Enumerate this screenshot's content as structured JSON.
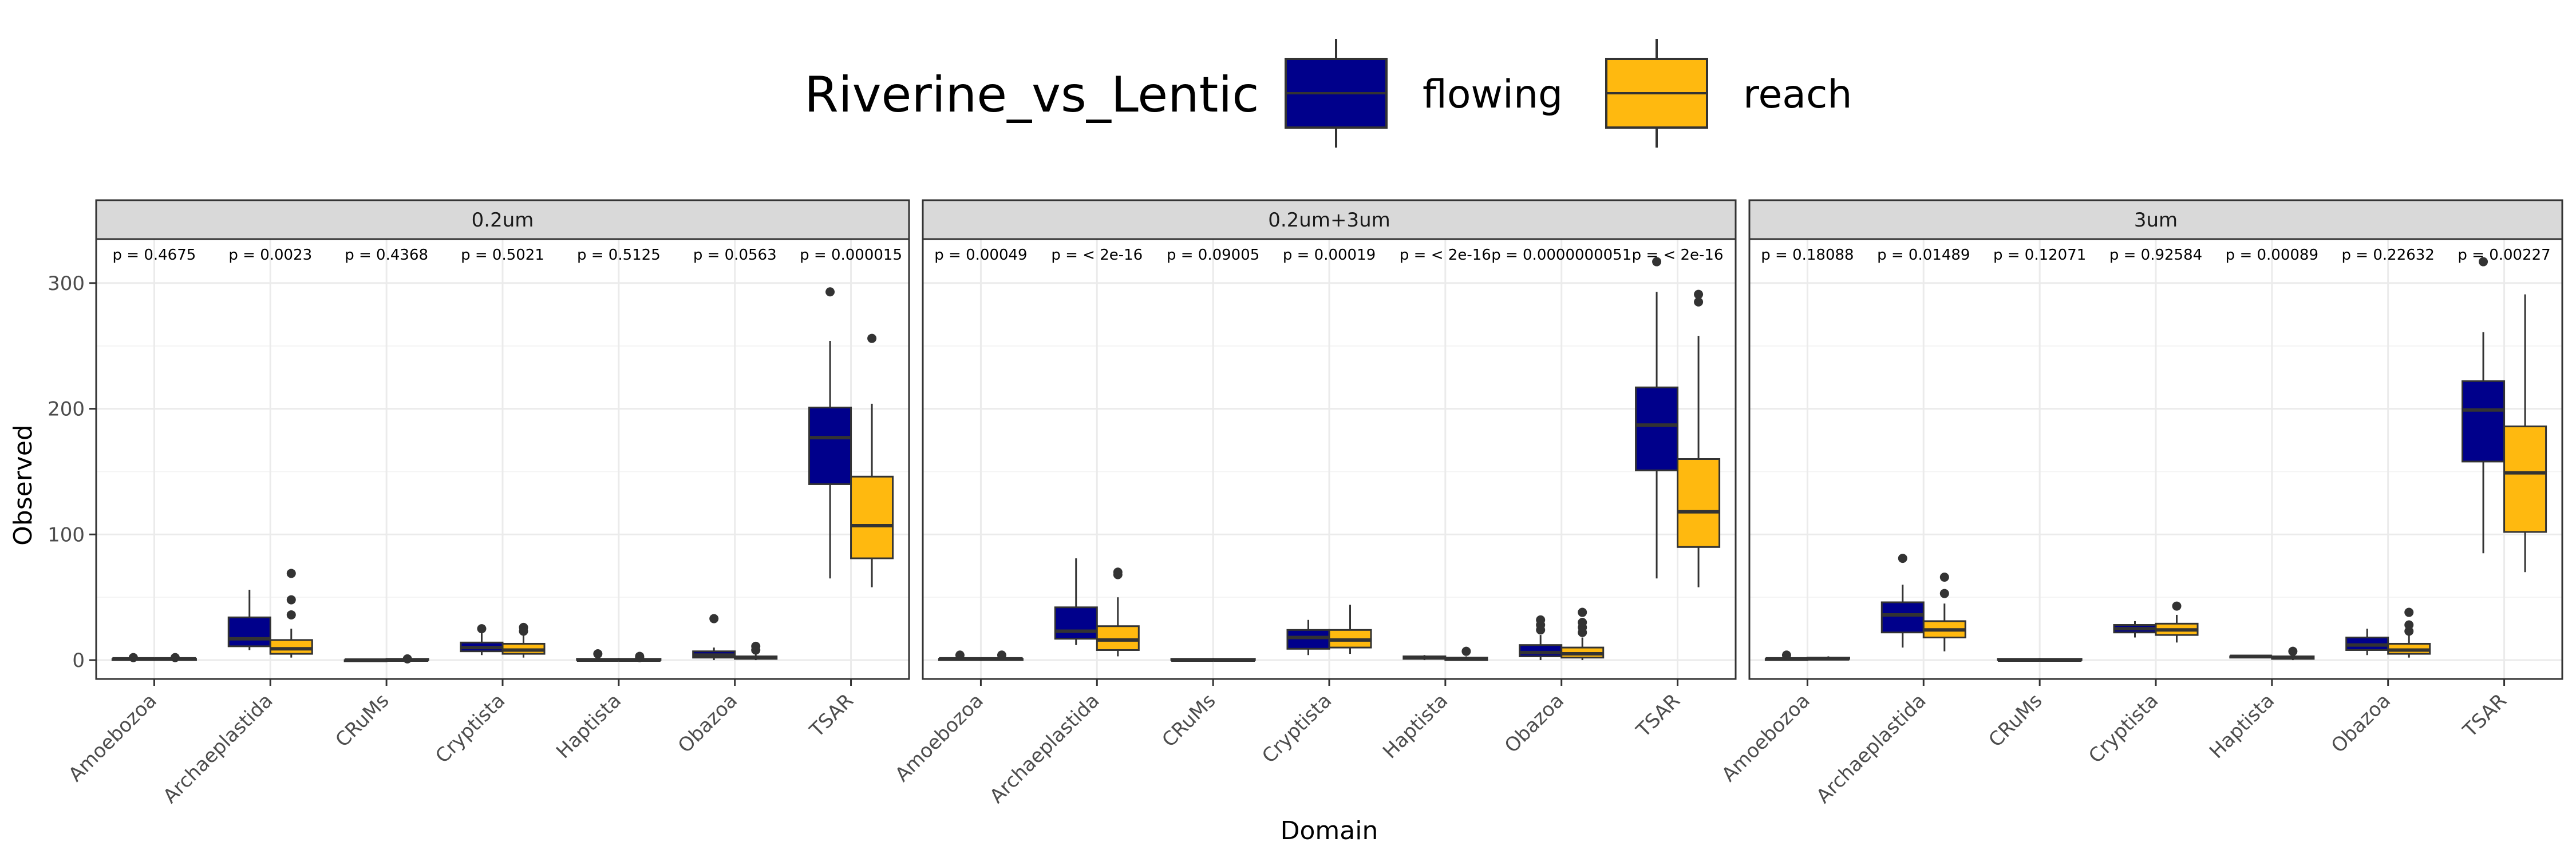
{
  "chart_data": {
    "type": "boxplot",
    "xlabel": "Domain",
    "ylabel": "Observed",
    "ylim": [
      -15,
      335
    ],
    "yticks": [
      0,
      100,
      200,
      300
    ],
    "legend": {
      "title": "Riverine_vs_Lentic",
      "placement": "top",
      "entries": [
        {
          "label": "flowing",
          "color": "#00008B"
        },
        {
          "label": "reach",
          "color": "#FFB90F"
        }
      ]
    },
    "categories": [
      "Amoebozoa",
      "Archaeplastida",
      "CRuMs",
      "Cryptista",
      "Haptista",
      "Obazoa",
      "TSAR"
    ],
    "grid": true,
    "panels": [
      {
        "strip": "0.2um",
        "pvalues": [
          "p = 0.4675",
          "p = 0.0023",
          "p = 0.4368",
          "p = 0.5021",
          "p = 0.5125",
          "p = 0.0563",
          "p = 0.000015"
        ],
        "boxes": {
          "flowing": [
            {
              "min": 0,
              "q1": 0,
              "median": 1,
              "q3": 1,
              "max": 2,
              "outliers": [
                2
              ]
            },
            {
              "min": 8,
              "q1": 11,
              "median": 17,
              "q3": 34,
              "max": 56,
              "outliers": []
            },
            {
              "min": 0,
              "q1": 0,
              "median": 0,
              "q3": 0,
              "max": 0,
              "outliers": []
            },
            {
              "min": 4,
              "q1": 7,
              "median": 10,
              "q3": 14,
              "max": 22,
              "outliers": [
                25
              ]
            },
            {
              "min": 0,
              "q1": 0,
              "median": 0,
              "q3": 1,
              "max": 2,
              "outliers": [
                5
              ]
            },
            {
              "min": 0,
              "q1": 2,
              "median": 4,
              "q3": 7,
              "max": 10,
              "outliers": [
                33
              ]
            },
            {
              "min": 65,
              "q1": 140,
              "median": 177,
              "q3": 201,
              "max": 254,
              "outliers": [
                293
              ]
            }
          ],
          "reach": [
            {
              "min": 0,
              "q1": 0,
              "median": 1,
              "q3": 1,
              "max": 2,
              "outliers": [
                2
              ]
            },
            {
              "min": 2,
              "q1": 5,
              "median": 9,
              "q3": 16,
              "max": 25,
              "outliers": [
                36,
                48,
                69
              ]
            },
            {
              "min": 0,
              "q1": 0,
              "median": 0,
              "q3": 1,
              "max": 1,
              "outliers": [
                1
              ]
            },
            {
              "min": 2,
              "q1": 5,
              "median": 8,
              "q3": 13,
              "max": 20,
              "outliers": [
                23,
                26
              ]
            },
            {
              "min": 0,
              "q1": 0,
              "median": 0,
              "q3": 1,
              "max": 1,
              "outliers": [
                2,
                3
              ]
            },
            {
              "min": 0,
              "q1": 1,
              "median": 2,
              "q3": 3,
              "max": 5,
              "outliers": [
                8,
                11
              ]
            },
            {
              "min": 58,
              "q1": 81,
              "median": 107,
              "q3": 146,
              "max": 204,
              "outliers": [
                256
              ]
            }
          ]
        }
      },
      {
        "strip": "0.2um+3um",
        "pvalues": [
          "p = 0.00049",
          "p = < 2e-16",
          "p = 0.09005",
          "p = 0.00019",
          "p = < 2e-16",
          "p = 0.0000000051",
          "p = < 2e-16"
        ],
        "boxes": {
          "flowing": [
            {
              "min": 0,
              "q1": 0,
              "median": 1,
              "q3": 1,
              "max": 2,
              "outliers": [
                4
              ]
            },
            {
              "min": 12,
              "q1": 17,
              "median": 23,
              "q3": 42,
              "max": 81,
              "outliers": []
            },
            {
              "min": 0,
              "q1": 0,
              "median": 0,
              "q3": 1,
              "max": 1,
              "outliers": []
            },
            {
              "min": 4,
              "q1": 9,
              "median": 18,
              "q3": 24,
              "max": 32,
              "outliers": []
            },
            {
              "min": 0,
              "q1": 1,
              "median": 2,
              "q3": 3,
              "max": 4,
              "outliers": []
            },
            {
              "min": 0,
              "q1": 3,
              "median": 6,
              "q3": 12,
              "max": 20,
              "outliers": [
                24,
                28,
                32
              ]
            },
            {
              "min": 65,
              "q1": 151,
              "median": 187,
              "q3": 217,
              "max": 293,
              "outliers": [
                317
              ]
            }
          ],
          "reach": [
            {
              "min": 0,
              "q1": 0,
              "median": 1,
              "q3": 1,
              "max": 2,
              "outliers": [
                4
              ]
            },
            {
              "min": 3,
              "q1": 8,
              "median": 16,
              "q3": 27,
              "max": 50,
              "outliers": [
                68,
                70
              ]
            },
            {
              "min": 0,
              "q1": 0,
              "median": 0,
              "q3": 1,
              "max": 1,
              "outliers": []
            },
            {
              "min": 5,
              "q1": 10,
              "median": 16,
              "q3": 24,
              "max": 44,
              "outliers": []
            },
            {
              "min": 0,
              "q1": 0,
              "median": 1,
              "q3": 2,
              "max": 3,
              "outliers": [
                7
              ]
            },
            {
              "min": 0,
              "q1": 2,
              "median": 5,
              "q3": 10,
              "max": 18,
              "outliers": [
                22,
                26,
                30,
                38
              ]
            },
            {
              "min": 58,
              "q1": 90,
              "median": 118,
              "q3": 160,
              "max": 258,
              "outliers": [
                285,
                291
              ]
            }
          ]
        }
      },
      {
        "strip": "3um",
        "pvalues": [
          "p = 0.18088",
          "p = 0.01489",
          "p = 0.12071",
          "p = 0.92584",
          "p = 0.00089",
          "p = 0.22632",
          "p = 0.00227"
        ],
        "boxes": {
          "flowing": [
            {
              "min": 0,
              "q1": 0,
              "median": 1,
              "q3": 1,
              "max": 2,
              "outliers": [
                4
              ]
            },
            {
              "min": 10,
              "q1": 22,
              "median": 36,
              "q3": 46,
              "max": 60,
              "outliers": [
                81
              ]
            },
            {
              "min": 0,
              "q1": 0,
              "median": 0,
              "q3": 1,
              "max": 1,
              "outliers": []
            },
            {
              "min": 18,
              "q1": 22,
              "median": 25,
              "q3": 28,
              "max": 31,
              "outliers": []
            },
            {
              "min": 2,
              "q1": 2,
              "median": 3,
              "q3": 3,
              "max": 3,
              "outliers": []
            },
            {
              "min": 4,
              "q1": 8,
              "median": 12,
              "q3": 18,
              "max": 25,
              "outliers": []
            },
            {
              "min": 85,
              "q1": 158,
              "median": 199,
              "q3": 222,
              "max": 261,
              "outliers": [
                317
              ]
            }
          ],
          "reach": [
            {
              "min": 0,
              "q1": 1,
              "median": 1,
              "q3": 2,
              "max": 3,
              "outliers": []
            },
            {
              "min": 7,
              "q1": 18,
              "median": 24,
              "q3": 31,
              "max": 45,
              "outliers": [
                53,
                66
              ]
            },
            {
              "min": 0,
              "q1": 0,
              "median": 0,
              "q3": 1,
              "max": 1,
              "outliers": []
            },
            {
              "min": 14,
              "q1": 20,
              "median": 24,
              "q3": 29,
              "max": 36,
              "outliers": [
                43
              ]
            },
            {
              "min": 0,
              "q1": 1,
              "median": 2,
              "q3": 3,
              "max": 4,
              "outliers": [
                7
              ]
            },
            {
              "min": 2,
              "q1": 5,
              "median": 8,
              "q3": 13,
              "max": 20,
              "outliers": [
                23,
                28,
                38
              ]
            },
            {
              "min": 70,
              "q1": 102,
              "median": 149,
              "q3": 186,
              "max": 291,
              "outliers": []
            }
          ]
        }
      }
    ]
  }
}
